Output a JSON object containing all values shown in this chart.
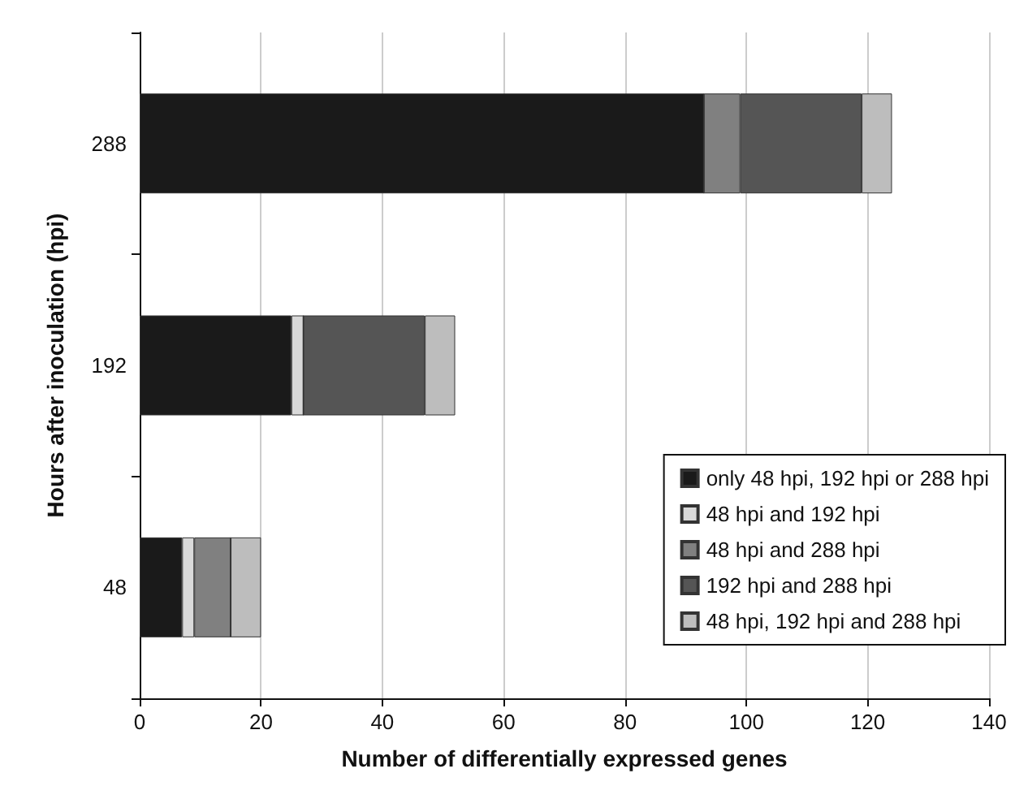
{
  "chart_data": {
    "type": "bar",
    "orientation": "horizontal",
    "stacked": true,
    "xlabel": "Number of differentially expressed genes",
    "ylabel": "Hours after inoculation (hpi)",
    "categories": [
      "288",
      "192",
      "48"
    ],
    "series": [
      {
        "name": "only 48 hpi, 192 hpi or 288 hpi",
        "color": "#1a1a1a",
        "values": [
          93,
          25,
          7
        ]
      },
      {
        "name": "48 hpi and 192 hpi",
        "color": "#d9d9d9",
        "values": [
          0,
          2,
          2
        ]
      },
      {
        "name": "48 hpi and 288 hpi",
        "color": "#808080",
        "values": [
          6,
          0,
          6
        ]
      },
      {
        "name": "192 hpi and 288 hpi",
        "color": "#555555",
        "values": [
          20,
          20,
          0
        ]
      },
      {
        "name": "48 hpi, 192 hpi and 288 hpi",
        "color": "#bdbdbd",
        "values": [
          5,
          5,
          5
        ]
      }
    ],
    "xlim": [
      0,
      140
    ],
    "xticks": [
      0,
      20,
      40,
      60,
      80,
      100,
      120,
      140
    ],
    "grid": "x",
    "legend": "bottom right"
  }
}
